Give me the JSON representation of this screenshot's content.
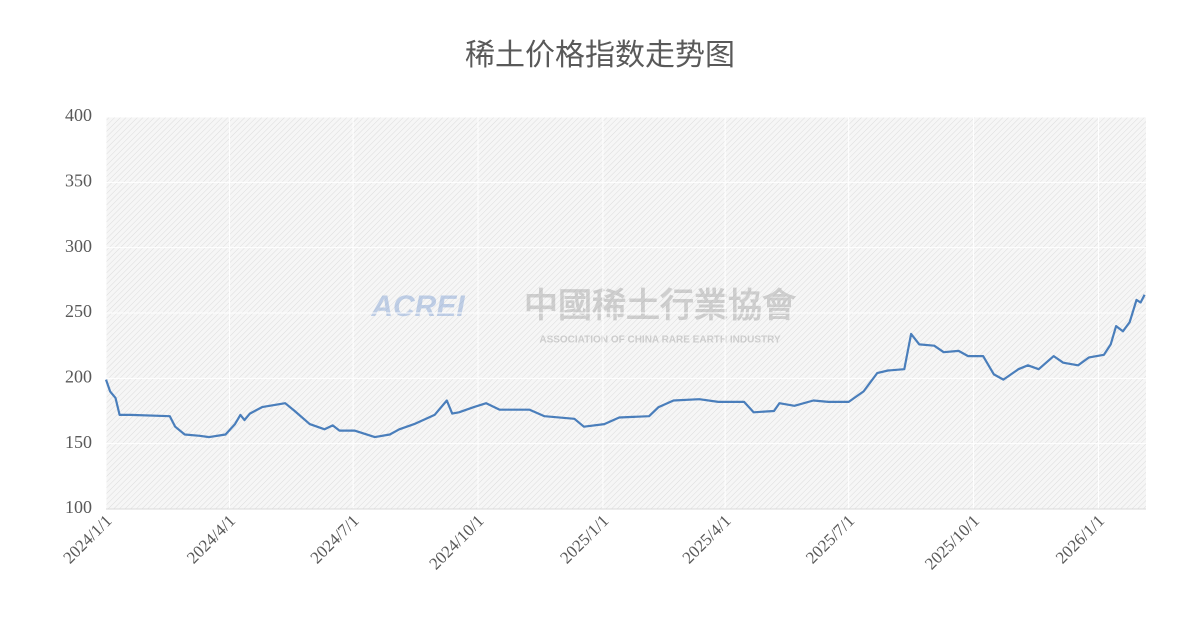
{
  "chart_data": {
    "type": "line",
    "title": "稀土价格指数走势图",
    "watermark": {
      "logo": "ACREI",
      "name": "中國稀土行業協會",
      "subtitle": "ASSOCIATION OF CHINA RARE EARTH INDUSTRY"
    },
    "x": [
      "2024/1/1",
      "2024/1/4",
      "2024/1/8",
      "2024/1/11",
      "2024/1/19",
      "2024/2/17",
      "2024/2/21",
      "2024/2/28",
      "2024/3/10",
      "2024/3/17",
      "2024/3/29",
      "2024/4/5",
      "2024/4/9",
      "2024/4/12",
      "2024/4/16",
      "2024/4/25",
      "2024/5/12",
      "2024/5/19",
      "2024/5/30",
      "2024/6/10",
      "2024/6/16",
      "2024/6/21",
      "2024/7/2",
      "2024/7/17",
      "2024/7/28",
      "2024/8/4",
      "2024/8/15",
      "2024/8/30",
      "2024/9/8",
      "2024/9/12",
      "2024/9/17",
      "2024/9/28",
      "2024/10/7",
      "2024/10/17",
      "2024/11/8",
      "2024/11/19",
      "2024/12/11",
      "2024/12/18",
      "2025/1/2",
      "2025/1/13",
      "2025/2/4",
      "2025/2/11",
      "2025/2/22",
      "2025/3/13",
      "2025/3/27",
      "2025/4/15",
      "2025/4/22",
      "2025/5/7",
      "2025/5/11",
      "2025/5/22",
      "2025/6/5",
      "2025/6/16",
      "2025/7/1",
      "2025/7/12",
      "2025/7/22",
      "2025/7/30",
      "2025/8/11",
      "2025/8/16",
      "2025/8/22",
      "2025/9/2",
      "2025/9/9",
      "2025/9/20",
      "2025/9/27",
      "2025/10/8",
      "2025/10/16",
      "2025/10/23",
      "2025/11/3",
      "2025/11/10",
      "2025/11/18",
      "2025/11/29",
      "2025/12/6",
      "2025/12/17",
      "2025/12/25",
      "2026/1/5",
      "2026/1/10",
      "2026/1/14",
      "2026/1/19",
      "2026/1/24",
      "2026/1/29",
      "2026/2/1",
      "2026/2/4"
    ],
    "series": [
      {
        "color": "#4a7ebb",
        "values": [
          199,
          190,
          185,
          172,
          172,
          171,
          163,
          157,
          156,
          155,
          157,
          165,
          172,
          168,
          173,
          178,
          181,
          175,
          165,
          161,
          164,
          160,
          160,
          155,
          157,
          161,
          165,
          172,
          183,
          173,
          174,
          178,
          181,
          176,
          176,
          171,
          169,
          163,
          165,
          170,
          171,
          178,
          183,
          184,
          182,
          182,
          174,
          175,
          181,
          179,
          183,
          182,
          182,
          190,
          204,
          206,
          207,
          234,
          226,
          225,
          220,
          221,
          217,
          217,
          203,
          199,
          207,
          210,
          207,
          217,
          212,
          210,
          216,
          218,
          226,
          240,
          236,
          243,
          260,
          258,
          264
        ]
      }
    ],
    "xlim": [
      "2024/1/1",
      "2026/2/5"
    ],
    "xticks": [
      "2024/1/1",
      "2024/4/1",
      "2024/7/1",
      "2024/10/1",
      "2025/1/1",
      "2025/4/1",
      "2025/7/1",
      "2025/10/1",
      "2026/1/1"
    ],
    "ylim": [
      100,
      400
    ],
    "yticks": [
      100,
      150,
      200,
      250,
      300,
      350,
      400
    ],
    "grid": true
  }
}
